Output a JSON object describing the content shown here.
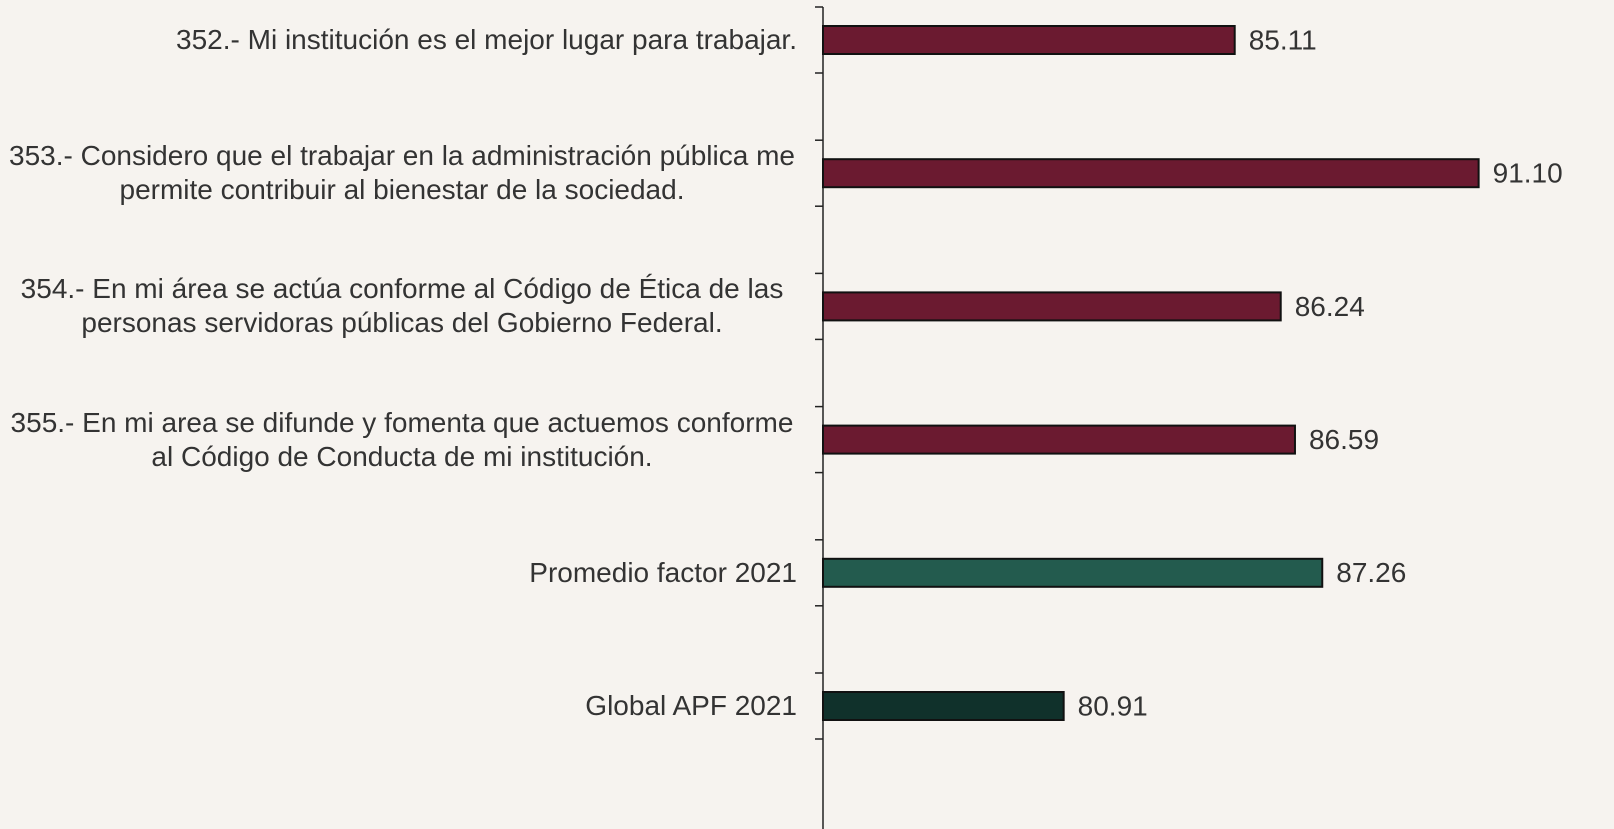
{
  "chart_data": {
    "type": "bar",
    "orientation": "horizontal",
    "categories": [
      "352.- Mi institución es el mejor lugar para trabajar.",
      "353.- Considero que el trabajar en la administración pública me permite contribuir al bienestar de la sociedad.",
      "354.- En mi área se actúa conforme al Código de Ética de las personas servidoras públicas del Gobierno Federal.",
      "355.- En mi area se difunde y fomenta que actuemos conforme al Código de Conducta de mi institución.",
      "Promedio factor 2021",
      "Global APF 2021"
    ],
    "values": [
      85.11,
      91.1,
      86.24,
      86.59,
      87.26,
      80.91
    ],
    "value_labels": [
      "85.11",
      "91.10",
      "86.24",
      "86.59",
      "87.26",
      "80.91"
    ],
    "colors": [
      "#6b1a30",
      "#6b1a30",
      "#6b1a30",
      "#6b1a30",
      "#235b4e",
      "#10312b"
    ],
    "xlim": [
      75,
      93
    ]
  }
}
